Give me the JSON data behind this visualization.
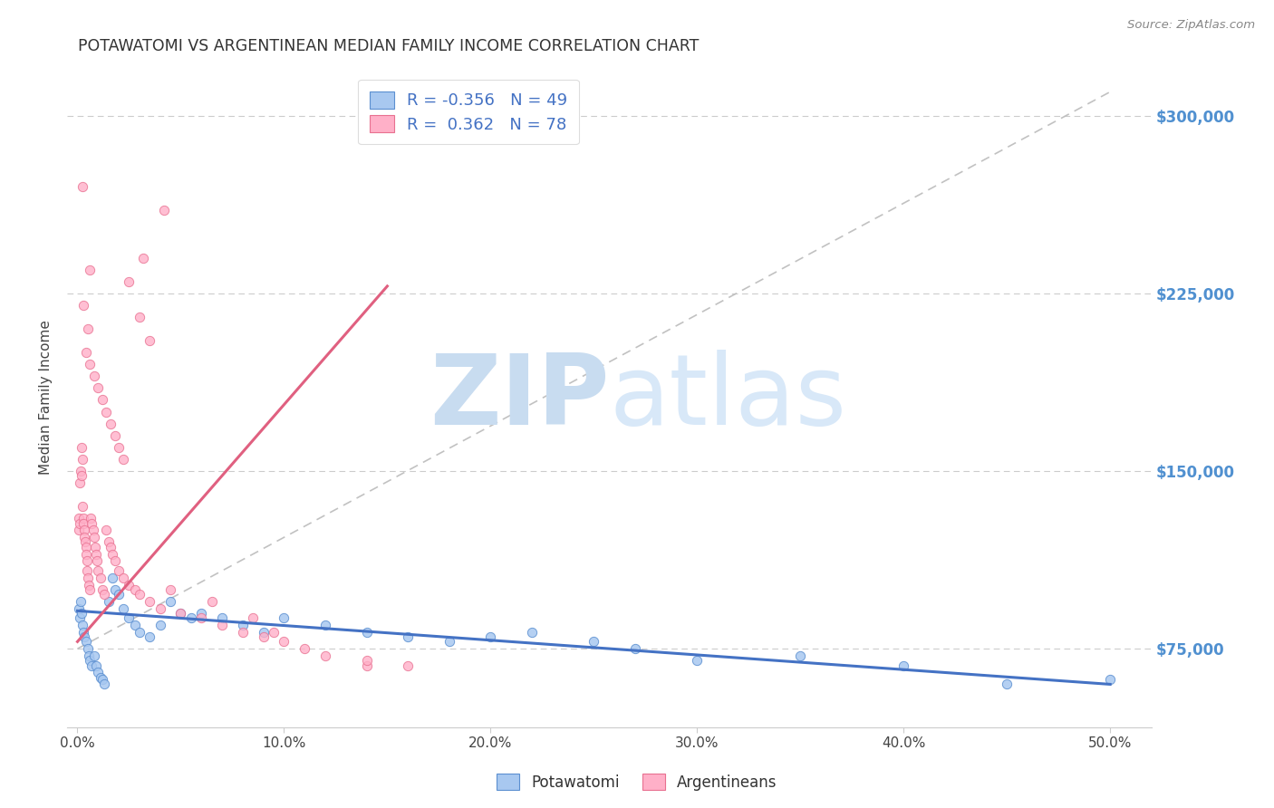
{
  "title": "POTAWATOMI VS ARGENTINEAN MEDIAN FAMILY INCOME CORRELATION CHART",
  "source_text": "Source: ZipAtlas.com",
  "ylabel": "Median Family Income",
  "xlabel_ticks": [
    "0.0%",
    "10.0%",
    "20.0%",
    "30.0%",
    "40.0%",
    "50.0%"
  ],
  "xlabel_vals": [
    0.0,
    10.0,
    20.0,
    30.0,
    40.0,
    50.0
  ],
  "ylabel_ticks": [
    75000,
    150000,
    225000,
    300000
  ],
  "ylabel_labels": [
    "$75,000",
    "$150,000",
    "$225,000",
    "$300,000"
  ],
  "ylim": [
    42000,
    320000
  ],
  "xlim": [
    -0.5,
    52.0
  ],
  "blue_R": -0.356,
  "blue_N": 49,
  "pink_R": 0.362,
  "pink_N": 78,
  "blue_color": "#A8C8F0",
  "pink_color": "#FFB0C8",
  "blue_edge_color": "#5B8FD0",
  "pink_edge_color": "#E87090",
  "blue_line_color": "#4472C4",
  "pink_line_color": "#E06080",
  "diag_line_color": "#BBBBBB",
  "watermark_zip_color": "#C8DCF0",
  "watermark_atlas_color": "#D8E8F8",
  "background_color": "#FFFFFF",
  "legend_text_color": "#4472C4",
  "right_label_color": "#5090D0",
  "title_color": "#333333",
  "blue_scatter_x": [
    0.05,
    0.1,
    0.15,
    0.2,
    0.25,
    0.3,
    0.35,
    0.4,
    0.5,
    0.55,
    0.6,
    0.7,
    0.8,
    0.9,
    1.0,
    1.1,
    1.2,
    1.3,
    1.5,
    1.7,
    1.8,
    2.0,
    2.2,
    2.5,
    2.8,
    3.0,
    3.5,
    4.0,
    4.5,
    5.0,
    5.5,
    6.0,
    7.0,
    8.0,
    9.0,
    10.0,
    12.0,
    14.0,
    16.0,
    18.0,
    20.0,
    22.0,
    25.0,
    27.0,
    30.0,
    35.0,
    40.0,
    45.0,
    50.0
  ],
  "blue_scatter_y": [
    92000,
    88000,
    95000,
    90000,
    85000,
    82000,
    80000,
    78000,
    75000,
    72000,
    70000,
    68000,
    72000,
    68000,
    65000,
    63000,
    62000,
    60000,
    95000,
    105000,
    100000,
    98000,
    92000,
    88000,
    85000,
    82000,
    80000,
    85000,
    95000,
    90000,
    88000,
    90000,
    88000,
    85000,
    82000,
    88000,
    85000,
    82000,
    80000,
    78000,
    80000,
    82000,
    78000,
    75000,
    70000,
    72000,
    68000,
    60000,
    62000
  ],
  "pink_scatter_x": [
    0.05,
    0.08,
    0.1,
    0.12,
    0.15,
    0.18,
    0.2,
    0.22,
    0.25,
    0.28,
    0.3,
    0.32,
    0.35,
    0.38,
    0.4,
    0.42,
    0.45,
    0.48,
    0.5,
    0.55,
    0.6,
    0.65,
    0.7,
    0.75,
    0.8,
    0.85,
    0.9,
    0.95,
    1.0,
    1.1,
    1.2,
    1.3,
    1.4,
    1.5,
    1.6,
    1.7,
    1.8,
    2.0,
    2.2,
    2.5,
    2.8,
    3.0,
    3.5,
    4.0,
    5.0,
    6.0,
    7.0,
    8.0,
    9.0,
    10.0,
    12.0,
    14.0,
    0.3,
    0.4,
    0.5,
    0.6,
    0.8,
    1.0,
    1.2,
    1.4,
    1.6,
    1.8,
    2.0,
    2.2,
    2.5,
    3.0,
    3.5,
    4.5,
    6.5,
    8.5,
    11.0,
    14.0,
    16.0,
    3.2,
    4.2,
    9.5,
    0.25,
    0.6
  ],
  "pink_scatter_y": [
    125000,
    130000,
    128000,
    145000,
    150000,
    148000,
    160000,
    155000,
    135000,
    130000,
    128000,
    125000,
    122000,
    120000,
    118000,
    115000,
    112000,
    108000,
    105000,
    102000,
    100000,
    130000,
    128000,
    125000,
    122000,
    118000,
    115000,
    112000,
    108000,
    105000,
    100000,
    98000,
    125000,
    120000,
    118000,
    115000,
    112000,
    108000,
    105000,
    102000,
    100000,
    98000,
    95000,
    92000,
    90000,
    88000,
    85000,
    82000,
    80000,
    78000,
    72000,
    68000,
    220000,
    200000,
    210000,
    195000,
    190000,
    185000,
    180000,
    175000,
    170000,
    165000,
    160000,
    155000,
    230000,
    215000,
    205000,
    100000,
    95000,
    88000,
    75000,
    70000,
    68000,
    240000,
    260000,
    82000,
    270000,
    235000
  ]
}
